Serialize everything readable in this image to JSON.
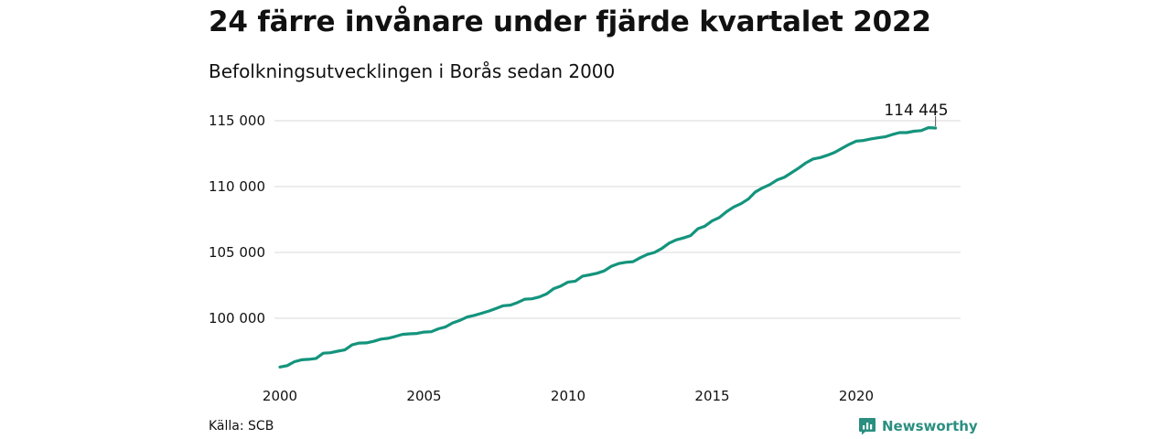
{
  "title": "24 färre invånare under fjärde kvartalet 2022",
  "subtitle": "Befolkningsutvecklingen i Borås sedan 2000",
  "source": "Källa: SCB",
  "brand": "Newsworthy",
  "colors": {
    "line": "#14947d",
    "grid": "#d9d9d9",
    "brand": "#2a8f80"
  },
  "chart_data": {
    "type": "line",
    "title": "24 färre invånare under fjärde kvartalet 2022",
    "subtitle": "Befolkningsutvecklingen i Borås sedan 2000",
    "xlabel": "",
    "ylabel": "",
    "xlim": [
      2000,
      2023.25
    ],
    "ylim": [
      96000,
      115500
    ],
    "x_ticks": [
      2000,
      2005,
      2010,
      2015,
      2020
    ],
    "x_tick_labels": [
      "2000",
      "2005",
      "2010",
      "2015",
      "2020"
    ],
    "y_ticks": [
      100000,
      105000,
      110000,
      115000
    ],
    "y_tick_labels": [
      "100 000",
      "105 000",
      "110 000",
      "115 000"
    ],
    "grid": "horizontal",
    "annotation": {
      "label": "114 445",
      "x": 2022.75,
      "y": 114445
    },
    "series": [
      {
        "x": [
          2000.0,
          2000.25,
          2000.5,
          2000.75,
          2001.0,
          2001.25,
          2001.5,
          2001.75,
          2002.0,
          2002.25,
          2002.5,
          2002.75,
          2003.0,
          2003.25,
          2003.5,
          2003.75,
          2004.0,
          2004.25,
          2004.5,
          2004.75,
          2005.0,
          2005.25,
          2005.5,
          2005.75,
          2006.0,
          2006.25,
          2006.5,
          2006.75,
          2007.0,
          2007.25,
          2007.5,
          2007.75,
          2008.0,
          2008.25,
          2008.5,
          2008.75,
          2009.0,
          2009.25,
          2009.5,
          2009.75,
          2010.0,
          2010.25,
          2010.5,
          2010.75,
          2011.0,
          2011.25,
          2011.5,
          2011.75,
          2012.0,
          2012.25,
          2012.5,
          2012.75,
          2013.0,
          2013.25,
          2013.5,
          2013.75,
          2014.0,
          2014.25,
          2014.5,
          2014.75,
          2015.0,
          2015.25,
          2015.5,
          2015.75,
          2016.0,
          2016.25,
          2016.5,
          2016.75,
          2017.0,
          2017.25,
          2017.5,
          2017.75,
          2018.0,
          2018.25,
          2018.5,
          2018.75,
          2019.0,
          2019.25,
          2019.5,
          2019.75,
          2020.0,
          2020.25,
          2020.5,
          2020.75,
          2021.0,
          2021.25,
          2021.5,
          2021.75,
          2022.0,
          2022.25,
          2022.5,
          2022.75
        ],
        "values": [
          96300,
          96400,
          96700,
          96850,
          96880,
          96950,
          97350,
          97380,
          97500,
          97600,
          97980,
          98120,
          98130,
          98250,
          98420,
          98480,
          98620,
          98780,
          98820,
          98850,
          98950,
          98980,
          99200,
          99350,
          99650,
          99850,
          100100,
          100220,
          100380,
          100550,
          100750,
          100950,
          101000,
          101200,
          101450,
          101480,
          101620,
          101850,
          102250,
          102450,
          102750,
          102820,
          103200,
          103300,
          103420,
          103600,
          103950,
          104150,
          104250,
          104300,
          104600,
          104850,
          105000,
          105300,
          105700,
          105950,
          106100,
          106280,
          106800,
          107000,
          107400,
          107650,
          108100,
          108450,
          108700,
          109050,
          109600,
          109900,
          110150,
          110500,
          110700,
          111050,
          111400,
          111800,
          112100,
          112200,
          112380,
          112600,
          112900,
          113200,
          113450,
          113500,
          113620,
          113700,
          113780,
          113950,
          114100,
          114100,
          114200,
          114250,
          114469,
          114445
        ]
      }
    ]
  }
}
